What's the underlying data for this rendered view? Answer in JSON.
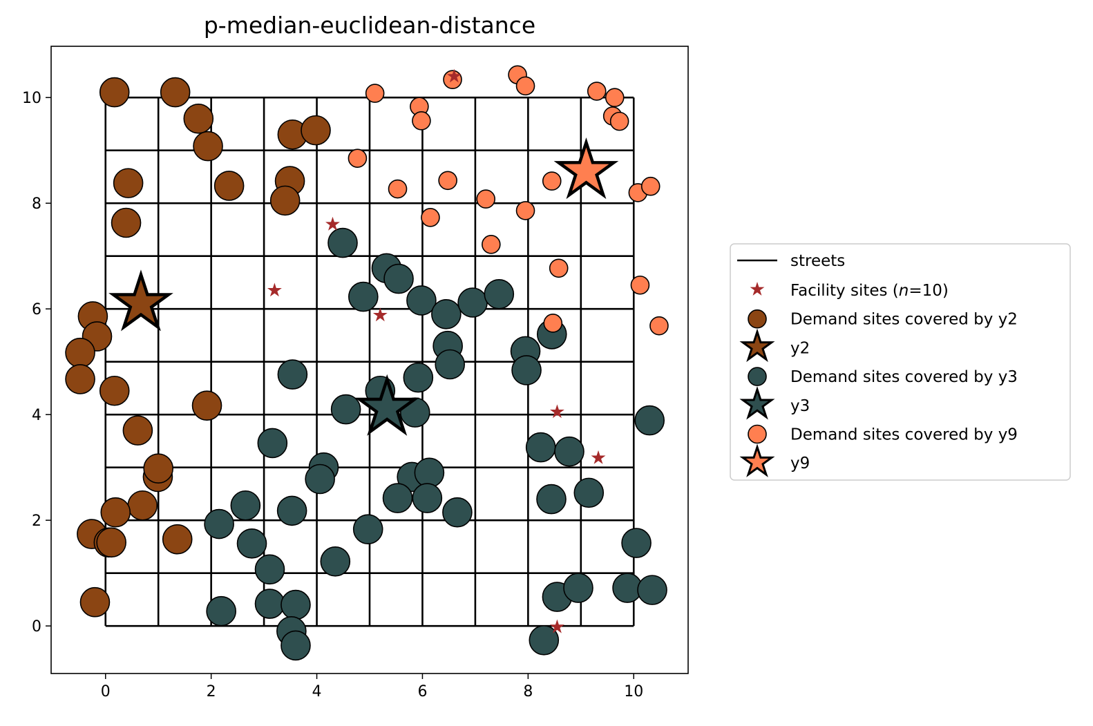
{
  "chart_data": {
    "type": "scatter",
    "title": "p-median-euclidean-distance",
    "xlabel": "",
    "ylabel": "",
    "xlim": [
      -1.03,
      11.03
    ],
    "ylim": [
      -0.9,
      10.97
    ],
    "x_ticks": [
      0,
      2,
      4,
      6,
      8,
      10
    ],
    "y_ticks": [
      0,
      2,
      4,
      6,
      8,
      10
    ],
    "grid": false,
    "legend_position": "right",
    "streets": {
      "label": "streets",
      "x_range": [
        0,
        10
      ],
      "y_range": [
        0,
        10
      ],
      "step": 1,
      "color": "#000000"
    },
    "facility_sites": {
      "label_prefix": "Facility sites (",
      "label_var": "n",
      "label_suffix": "=10)",
      "color": "#a52a2a",
      "points": [
        [
          6.6,
          10.4
        ],
        [
          4.3,
          7.6
        ],
        [
          3.2,
          6.35
        ],
        [
          5.2,
          5.88
        ],
        [
          8.55,
          4.05
        ],
        [
          9.33,
          3.18
        ],
        [
          8.55,
          -0.02
        ]
      ]
    },
    "series": [
      {
        "name": "Demand sites covered by y2",
        "facility_label": "y2",
        "color": "#8b4513",
        "facility": [
          0.67,
          6.1
        ],
        "points": [
          [
            0.17,
            10.1
          ],
          [
            1.32,
            10.1
          ],
          [
            1.76,
            9.6
          ],
          [
            1.94,
            9.08
          ],
          [
            3.54,
            9.3
          ],
          [
            3.98,
            9.38
          ],
          [
            0.43,
            8.38
          ],
          [
            2.34,
            8.33
          ],
          [
            3.49,
            8.42
          ],
          [
            3.4,
            8.05
          ],
          [
            0.39,
            7.63
          ],
          [
            -0.24,
            5.86
          ],
          [
            -0.16,
            5.48
          ],
          [
            -0.48,
            5.17
          ],
          [
            -0.48,
            4.67
          ],
          [
            0.17,
            4.45
          ],
          [
            0.61,
            3.7
          ],
          [
            1.92,
            4.17
          ],
          [
            0.99,
            2.82
          ],
          [
            1.0,
            2.98
          ],
          [
            0.7,
            2.28
          ],
          [
            0.19,
            2.15
          ],
          [
            -0.26,
            1.74
          ],
          [
            0.06,
            1.58
          ],
          [
            0.11,
            1.58
          ],
          [
            1.36,
            1.64
          ],
          [
            -0.2,
            0.45
          ]
        ]
      },
      {
        "name": "Demand sites covered by y3",
        "facility_label": "y3",
        "color": "#2f4f4f",
        "facility": [
          5.33,
          4.12
        ],
        "points": [
          [
            4.49,
            7.25
          ],
          [
            5.32,
            6.77
          ],
          [
            5.55,
            6.57
          ],
          [
            4.88,
            6.23
          ],
          [
            5.98,
            6.16
          ],
          [
            6.45,
            5.9
          ],
          [
            6.95,
            6.12
          ],
          [
            7.45,
            6.28
          ],
          [
            6.48,
            5.3
          ],
          [
            6.52,
            4.95
          ],
          [
            5.92,
            4.7
          ],
          [
            5.86,
            4.04
          ],
          [
            5.2,
            4.45
          ],
          [
            4.55,
            4.1
          ],
          [
            3.54,
            4.76
          ],
          [
            3.16,
            3.46
          ],
          [
            4.13,
            3.0
          ],
          [
            4.06,
            2.78
          ],
          [
            5.8,
            2.82
          ],
          [
            6.13,
            2.9
          ],
          [
            5.53,
            2.42
          ],
          [
            6.09,
            2.42
          ],
          [
            6.66,
            2.15
          ],
          [
            3.53,
            2.18
          ],
          [
            2.65,
            2.28
          ],
          [
            2.15,
            1.93
          ],
          [
            2.77,
            1.56
          ],
          [
            4.97,
            1.83
          ],
          [
            3.11,
            1.07
          ],
          [
            4.35,
            1.22
          ],
          [
            3.11,
            0.42
          ],
          [
            3.6,
            0.4
          ],
          [
            2.19,
            0.28
          ],
          [
            3.52,
            -0.1
          ],
          [
            3.6,
            -0.37
          ],
          [
            7.95,
            5.2
          ],
          [
            7.97,
            4.84
          ],
          [
            8.45,
            5.52
          ],
          [
            8.24,
            3.38
          ],
          [
            8.78,
            3.3
          ],
          [
            10.3,
            3.89
          ],
          [
            9.15,
            2.52
          ],
          [
            8.44,
            2.4
          ],
          [
            10.05,
            1.57
          ],
          [
            8.55,
            0.55
          ],
          [
            8.95,
            0.72
          ],
          [
            9.88,
            0.72
          ],
          [
            10.35,
            0.68
          ],
          [
            8.3,
            -0.27
          ]
        ]
      },
      {
        "name": "Demand sites covered by y9",
        "facility_label": "y9",
        "color": "#ff7f50",
        "facility": [
          9.1,
          8.6
        ],
        "points": [
          [
            6.57,
            10.34
          ],
          [
            7.8,
            10.43
          ],
          [
            7.95,
            10.22
          ],
          [
            5.1,
            10.08
          ],
          [
            5.94,
            9.83
          ],
          [
            5.98,
            9.56
          ],
          [
            9.3,
            10.12
          ],
          [
            9.64,
            10.0
          ],
          [
            9.6,
            9.65
          ],
          [
            9.73,
            9.55
          ],
          [
            4.77,
            8.85
          ],
          [
            5.53,
            8.27
          ],
          [
            6.48,
            8.43
          ],
          [
            7.2,
            8.08
          ],
          [
            8.45,
            8.42
          ],
          [
            7.95,
            7.86
          ],
          [
            10.08,
            8.2
          ],
          [
            10.32,
            8.32
          ],
          [
            6.15,
            7.73
          ],
          [
            7.3,
            7.22
          ],
          [
            8.58,
            6.77
          ],
          [
            10.12,
            6.45
          ],
          [
            8.47,
            5.73
          ],
          [
            10.48,
            5.68
          ]
        ]
      }
    ]
  }
}
